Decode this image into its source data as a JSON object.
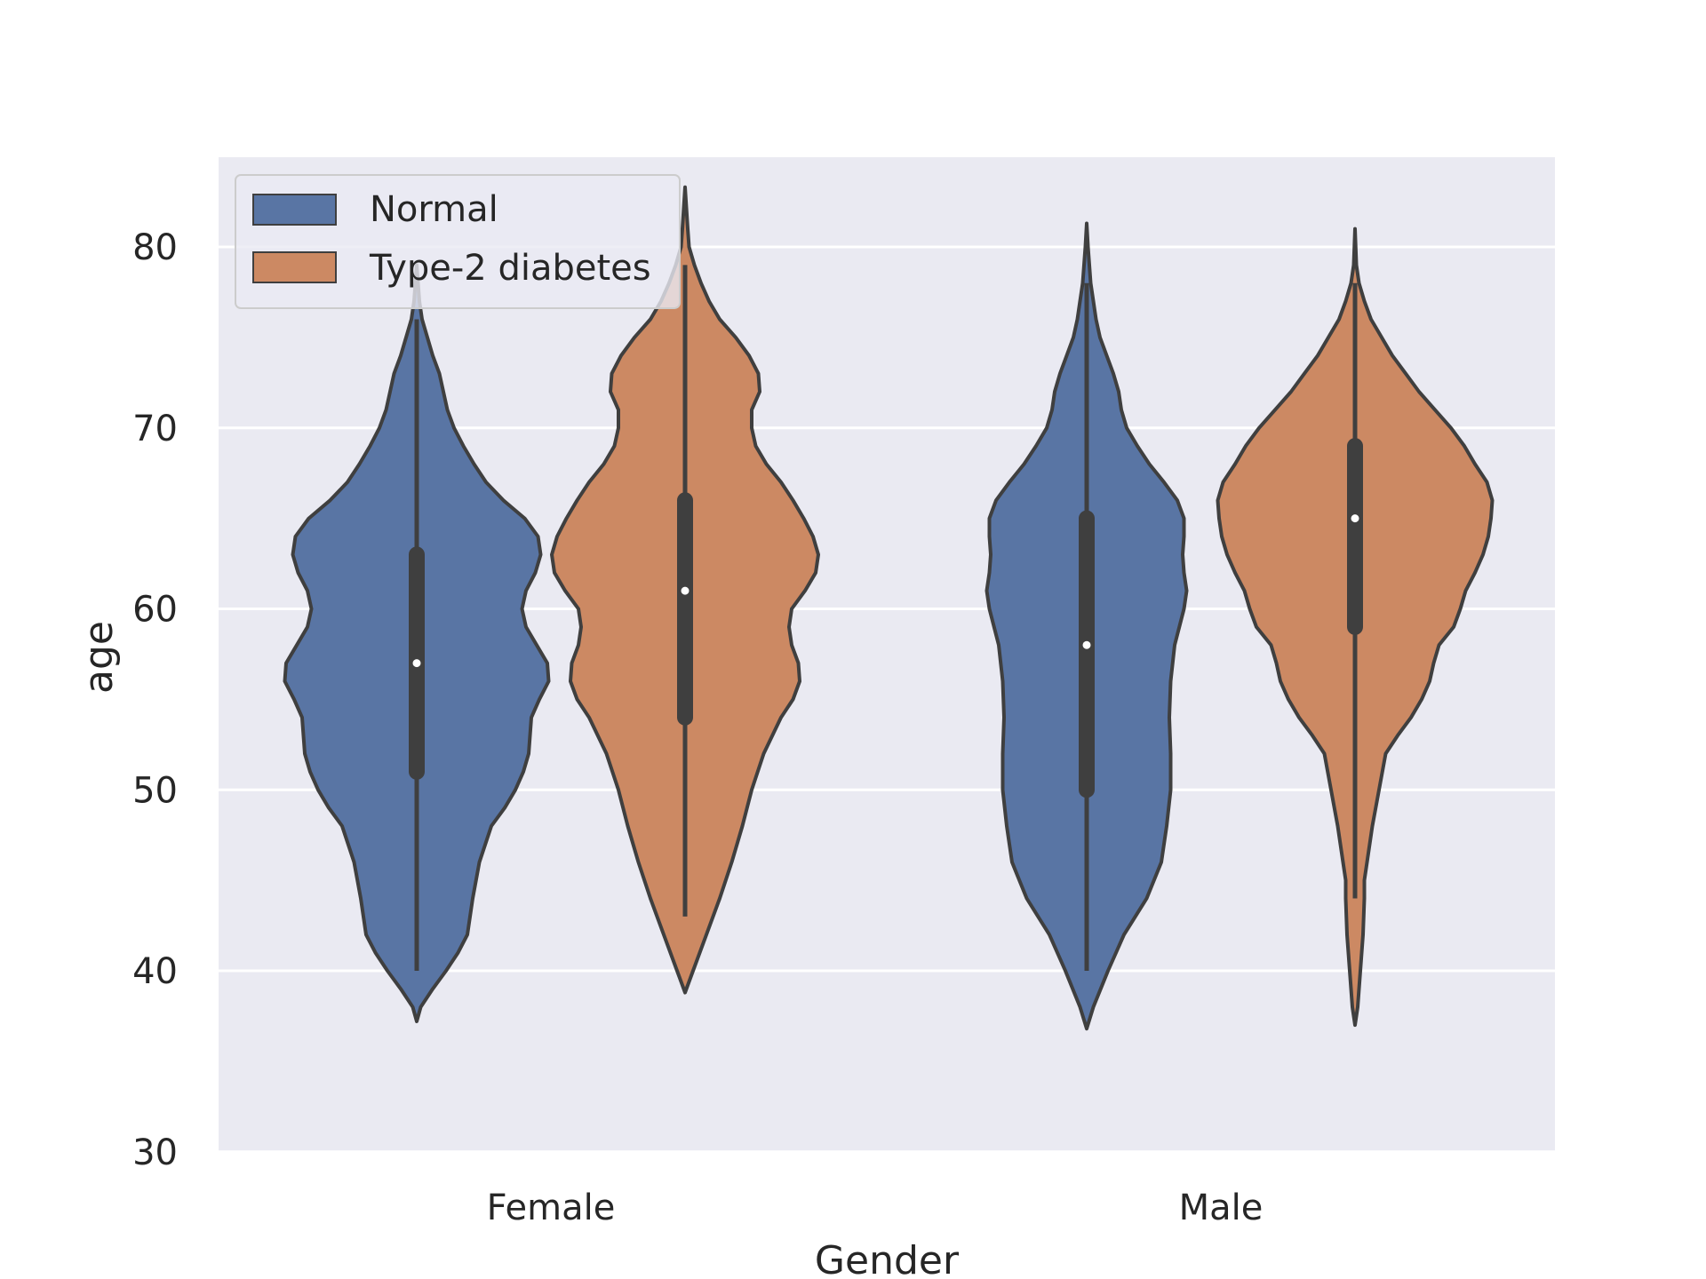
{
  "chart_data": {
    "type": "violin",
    "xlabel": "Gender",
    "ylabel": "age",
    "ylim": [
      30,
      85
    ],
    "yticks": [
      30,
      40,
      50,
      60,
      70,
      80
    ],
    "grid": true,
    "legend_position": "upper-left",
    "categories": [
      "Female",
      "Male"
    ],
    "series": [
      {
        "name": "Normal",
        "color": "#5975a4",
        "groups": [
          {
            "category": "Female",
            "min": 40,
            "q1": 51,
            "median": 57,
            "q3": 63,
            "max": 76,
            "kde_low": 37.2,
            "kde_high": 79,
            "profile": [
              [
                37.2,
                0.0
              ],
              [
                38,
                0.03
              ],
              [
                39,
                0.12
              ],
              [
                40,
                0.22
              ],
              [
                41,
                0.31
              ],
              [
                42,
                0.38
              ],
              [
                44,
                0.42
              ],
              [
                46,
                0.47
              ],
              [
                48,
                0.56
              ],
              [
                49,
                0.66
              ],
              [
                50,
                0.74
              ],
              [
                51,
                0.8
              ],
              [
                52,
                0.84
              ],
              [
                54,
                0.86
              ],
              [
                55,
                0.92
              ],
              [
                56,
                0.99
              ],
              [
                57,
                0.98
              ],
              [
                58,
                0.9
              ],
              [
                59,
                0.82
              ],
              [
                60,
                0.79
              ],
              [
                61,
                0.82
              ],
              [
                62,
                0.89
              ],
              [
                63,
                0.93
              ],
              [
                64,
                0.91
              ],
              [
                65,
                0.81
              ],
              [
                66,
                0.65
              ],
              [
                67,
                0.52
              ],
              [
                68,
                0.43
              ],
              [
                69,
                0.35
              ],
              [
                70,
                0.28
              ],
              [
                71,
                0.23
              ],
              [
                72,
                0.2
              ],
              [
                73,
                0.17
              ],
              [
                74,
                0.12
              ],
              [
                75,
                0.08
              ],
              [
                76,
                0.04
              ],
              [
                77,
                0.02
              ],
              [
                78,
                0.01
              ],
              [
                79,
                0.0
              ]
            ]
          },
          {
            "category": "Male",
            "min": 40,
            "q1": 50,
            "median": 58,
            "q3": 65,
            "max": 78,
            "kde_low": 36.8,
            "kde_high": 81.3,
            "profile": [
              [
                36.8,
                0.0
              ],
              [
                38,
                0.05
              ],
              [
                40,
                0.16
              ],
              [
                42,
                0.28
              ],
              [
                44,
                0.45
              ],
              [
                46,
                0.56
              ],
              [
                48,
                0.6
              ],
              [
                50,
                0.63
              ],
              [
                52,
                0.63
              ],
              [
                54,
                0.62
              ],
              [
                56,
                0.63
              ],
              [
                58,
                0.66
              ],
              [
                60,
                0.73
              ],
              [
                61,
                0.75
              ],
              [
                62,
                0.73
              ],
              [
                63,
                0.72
              ],
              [
                64,
                0.73
              ],
              [
                65,
                0.73
              ],
              [
                66,
                0.68
              ],
              [
                67,
                0.58
              ],
              [
                68,
                0.47
              ],
              [
                69,
                0.38
              ],
              [
                70,
                0.3
              ],
              [
                71,
                0.26
              ],
              [
                72,
                0.24
              ],
              [
                73,
                0.2
              ],
              [
                74,
                0.15
              ],
              [
                75,
                0.1
              ],
              [
                76,
                0.07
              ],
              [
                77,
                0.05
              ],
              [
                78,
                0.03
              ],
              [
                80,
                0.01
              ],
              [
                81.3,
                0.0
              ]
            ]
          }
        ]
      },
      {
        "name": "Type-2 diabetes",
        "color": "#cc8963",
        "groups": [
          {
            "category": "Female",
            "min": 43,
            "q1": 54,
            "median": 61,
            "q3": 66,
            "max": 79,
            "kde_low": 38.8,
            "kde_high": 83.3,
            "profile": [
              [
                38.8,
                0.0
              ],
              [
                40,
                0.06
              ],
              [
                42,
                0.16
              ],
              [
                44,
                0.26
              ],
              [
                46,
                0.35
              ],
              [
                48,
                0.43
              ],
              [
                50,
                0.5
              ],
              [
                52,
                0.59
              ],
              [
                54,
                0.72
              ],
              [
                55,
                0.81
              ],
              [
                56,
                0.86
              ],
              [
                57,
                0.85
              ],
              [
                58,
                0.8
              ],
              [
                59,
                0.78
              ],
              [
                60,
                0.8
              ],
              [
                61,
                0.9
              ],
              [
                62,
                0.98
              ],
              [
                63,
                1.0
              ],
              [
                64,
                0.96
              ],
              [
                65,
                0.89
              ],
              [
                66,
                0.81
              ],
              [
                67,
                0.72
              ],
              [
                68,
                0.61
              ],
              [
                69,
                0.53
              ],
              [
                70,
                0.5
              ],
              [
                71,
                0.5
              ],
              [
                72,
                0.56
              ],
              [
                73,
                0.55
              ],
              [
                74,
                0.48
              ],
              [
                75,
                0.38
              ],
              [
                76,
                0.26
              ],
              [
                77,
                0.18
              ],
              [
                78,
                0.12
              ],
              [
                79,
                0.07
              ],
              [
                80,
                0.03
              ],
              [
                81,
                0.02
              ],
              [
                83.3,
                0.0
              ]
            ]
          },
          {
            "category": "Male",
            "min": 44,
            "q1": 59,
            "median": 65,
            "q3": 69,
            "max": 78,
            "kde_low": 37,
            "kde_high": 81,
            "profile": [
              [
                37,
                0.0
              ],
              [
                38,
                0.02
              ],
              [
                40,
                0.04
              ],
              [
                42,
                0.06
              ],
              [
                44,
                0.07
              ],
              [
                45,
                0.07
              ],
              [
                46,
                0.09
              ],
              [
                48,
                0.13
              ],
              [
                50,
                0.18
              ],
              [
                52,
                0.23
              ],
              [
                53,
                0.32
              ],
              [
                54,
                0.42
              ],
              [
                55,
                0.5
              ],
              [
                56,
                0.56
              ],
              [
                57,
                0.59
              ],
              [
                58,
                0.63
              ],
              [
                59,
                0.74
              ],
              [
                60,
                0.79
              ],
              [
                61,
                0.83
              ],
              [
                62,
                0.9
              ],
              [
                63,
                0.96
              ],
              [
                64,
                1.0
              ],
              [
                65,
                1.02
              ],
              [
                66,
                1.03
              ],
              [
                67,
                0.99
              ],
              [
                68,
                0.9
              ],
              [
                69,
                0.82
              ],
              [
                70,
                0.72
              ],
              [
                71,
                0.6
              ],
              [
                72,
                0.48
              ],
              [
                73,
                0.38
              ],
              [
                74,
                0.28
              ],
              [
                75,
                0.2
              ],
              [
                76,
                0.12
              ],
              [
                77,
                0.07
              ],
              [
                78,
                0.03
              ],
              [
                79,
                0.01
              ],
              [
                81,
                0.0
              ]
            ]
          }
        ]
      }
    ]
  }
}
